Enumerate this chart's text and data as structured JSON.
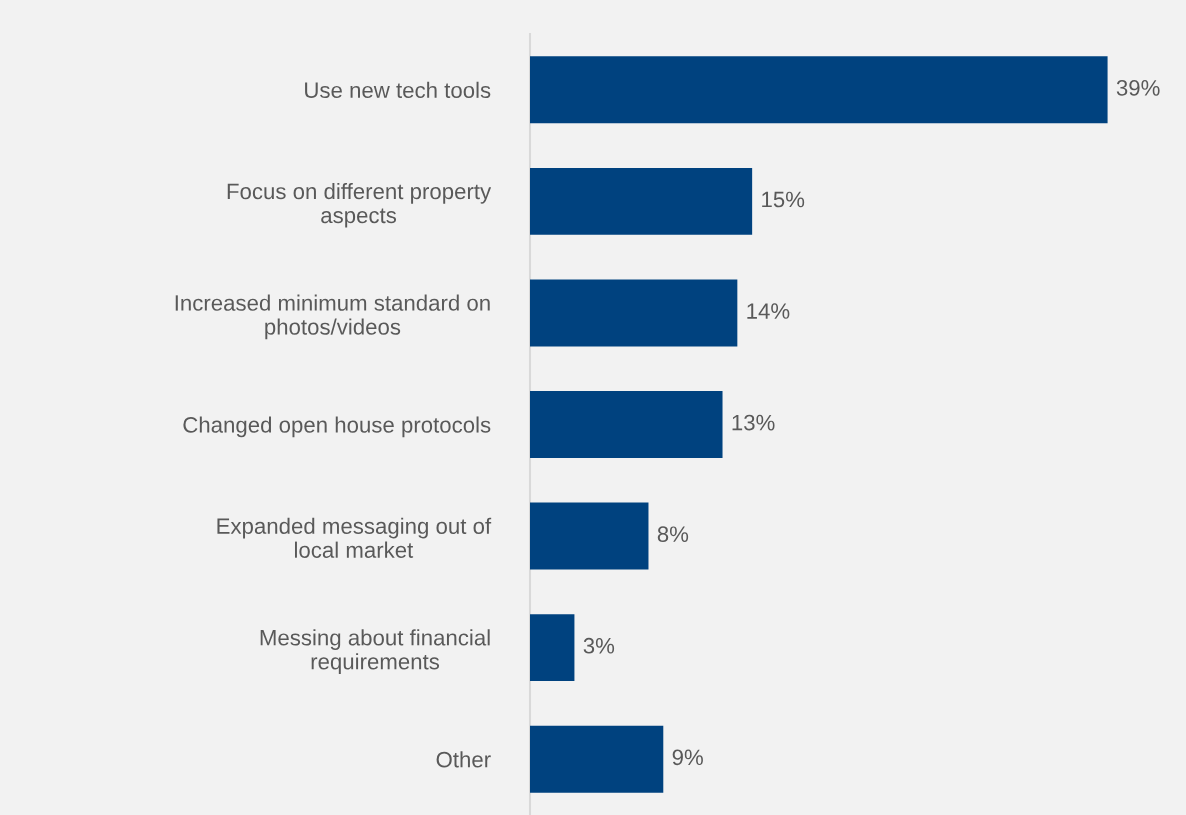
{
  "chart_data": {
    "type": "bar",
    "orientation": "horizontal",
    "categories": [
      "Use new tech tools",
      "Focus on different property\naspects",
      "Increased minimum standard on\nphotos/videos",
      "Changed open house protocols",
      "Expanded messaging out of\nlocal market",
      "Messing about financial\nrequirements",
      "Other"
    ],
    "values": [
      39,
      15,
      14,
      13,
      8,
      3,
      9
    ],
    "value_labels": [
      "39%",
      "15%",
      "14%",
      "13%",
      "8%",
      "3%",
      "9%"
    ],
    "color": "#00427f",
    "grid": false,
    "legend": false
  }
}
